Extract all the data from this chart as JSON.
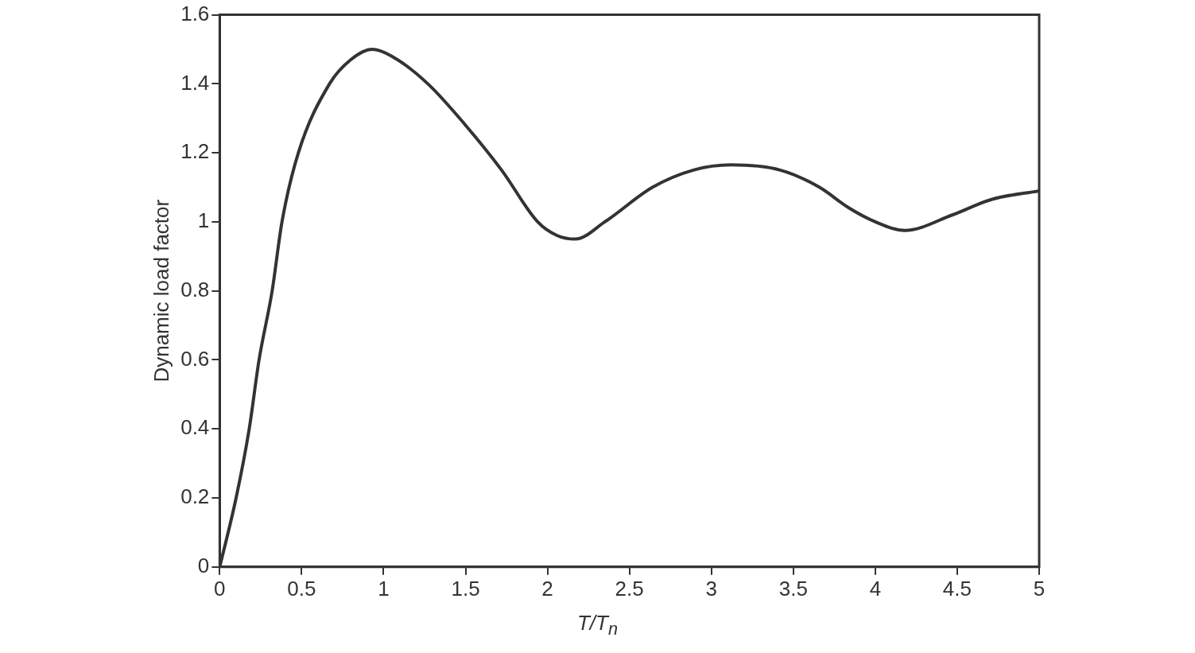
{
  "chart_data": {
    "type": "line",
    "xlabel": "T/T$_{n}$",
    "ylabel": "Dynamic load factor",
    "x": [
      0,
      0.1,
      0.18,
      0.24,
      0.32,
      0.38,
      0.48,
      0.67,
      0.8,
      0.93,
      1.05,
      1.27,
      1.5,
      1.72,
      1.94,
      2.06,
      2.17,
      2.35,
      2.64,
      2.89,
      3.12,
      3.42,
      3.66,
      3.84,
      4.0,
      4.18,
      4.47,
      4.71,
      5
    ],
    "series": [
      {
        "color": "#333333",
        "values": [
          0,
          0.2,
          0.4,
          0.6,
          0.8,
          1.0,
          1.2,
          1.4,
          1.47,
          1.5,
          1.48,
          1.4,
          1.28,
          1.15,
          1.0,
          0.96,
          0.95,
          1.0,
          1.1,
          1.15,
          1.165,
          1.15,
          1.1,
          1.04,
          1.0,
          0.975,
          1.02,
          1.065,
          1.09
        ]
      }
    ],
    "xlim": [
      0,
      5
    ],
    "xticks": [
      0,
      0.5,
      1,
      1.5,
      2,
      2.5,
      3,
      3.5,
      4,
      4.5,
      5
    ],
    "ylim": [
      0,
      1.6
    ],
    "yticks": [
      0,
      0.2,
      0.4,
      0.6,
      0.8,
      1,
      1.2,
      1.4,
      1.6
    ],
    "grid": false,
    "legend": false,
    "marker": "none",
    "line_style": "solid"
  }
}
